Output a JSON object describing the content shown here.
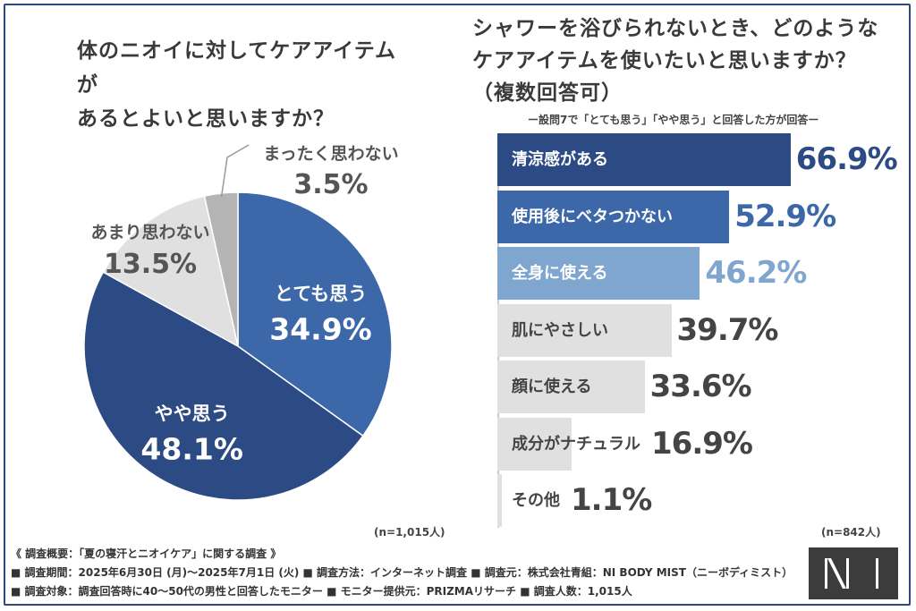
{
  "left_title_lines": [
    "体のニオイに対してケアアイテムが",
    "あるとよいと思いますか？"
  ],
  "right_title_lines": [
    "シャワーを浴びられないとき、どのような",
    "ケアアイテムを使いたいと思いますか？",
    "（複数回答可）"
  ],
  "subnote": "ー設問7で「とても思う」「やや思う」と回答した方が回答ー",
  "colors": {
    "dark_blue": "#2c4a84",
    "mid_blue": "#3c67a8",
    "light_blue": "#7ea6cf",
    "light_gray": "#e0e0e0",
    "mid_gray": "#b4b4b4",
    "frame": "#2d4a7c"
  },
  "chart_data": [
    {
      "type": "pie",
      "title": "体のニオイに対してケアアイテムがあるとよいと思いますか？",
      "slices": [
        {
          "label": "とても思う",
          "value": 34.9,
          "value_label": "34.9%"
        },
        {
          "label": "やや思う",
          "value": 48.1,
          "value_label": "48.1%"
        },
        {
          "label": "あまり思わない",
          "value": 13.5,
          "value_label": "13.5%"
        },
        {
          "label": "まったく思わない",
          "value": 3.5,
          "value_label": "3.5%"
        }
      ],
      "n_note": "(n=1,015人)"
    },
    {
      "type": "bar",
      "orientation": "horizontal",
      "title": "シャワーを浴びられないとき、どのようなケアアイテムを使いたいと思いますか？（複数回答可）",
      "categories": [
        "清涼感がある",
        "使用後にベタつかない",
        "全身に使える",
        "肌にやさしい",
        "顔に使える",
        "成分がナチュラル",
        "その他"
      ],
      "values": [
        66.9,
        52.9,
        46.2,
        39.7,
        33.6,
        16.9,
        1.1
      ],
      "value_labels": [
        "66.9%",
        "52.9%",
        "46.2%",
        "39.7%",
        "33.6%",
        "16.9%",
        "1.1%"
      ],
      "xlim": [
        0,
        100
      ],
      "n_note": "(n=842人)"
    }
  ],
  "footer": {
    "line1": "《 調査概要：「夏の寝汗とニオイケア」に関する調査 》",
    "line2": "■ 調査期間：2025年6月30日 (月)～2025年7月1日 (火)  ■ 調査方法：インターネット調査  ■ 調査元：株式会社青組：NI BODY MIST（ニーボディミスト）",
    "line3": "■ 調査対象：調査回答時に40～50代の男性と回答したモニター  ■ モニター提供元：PRIZMAリサーチ  ■ 調査人数：1,015人"
  }
}
